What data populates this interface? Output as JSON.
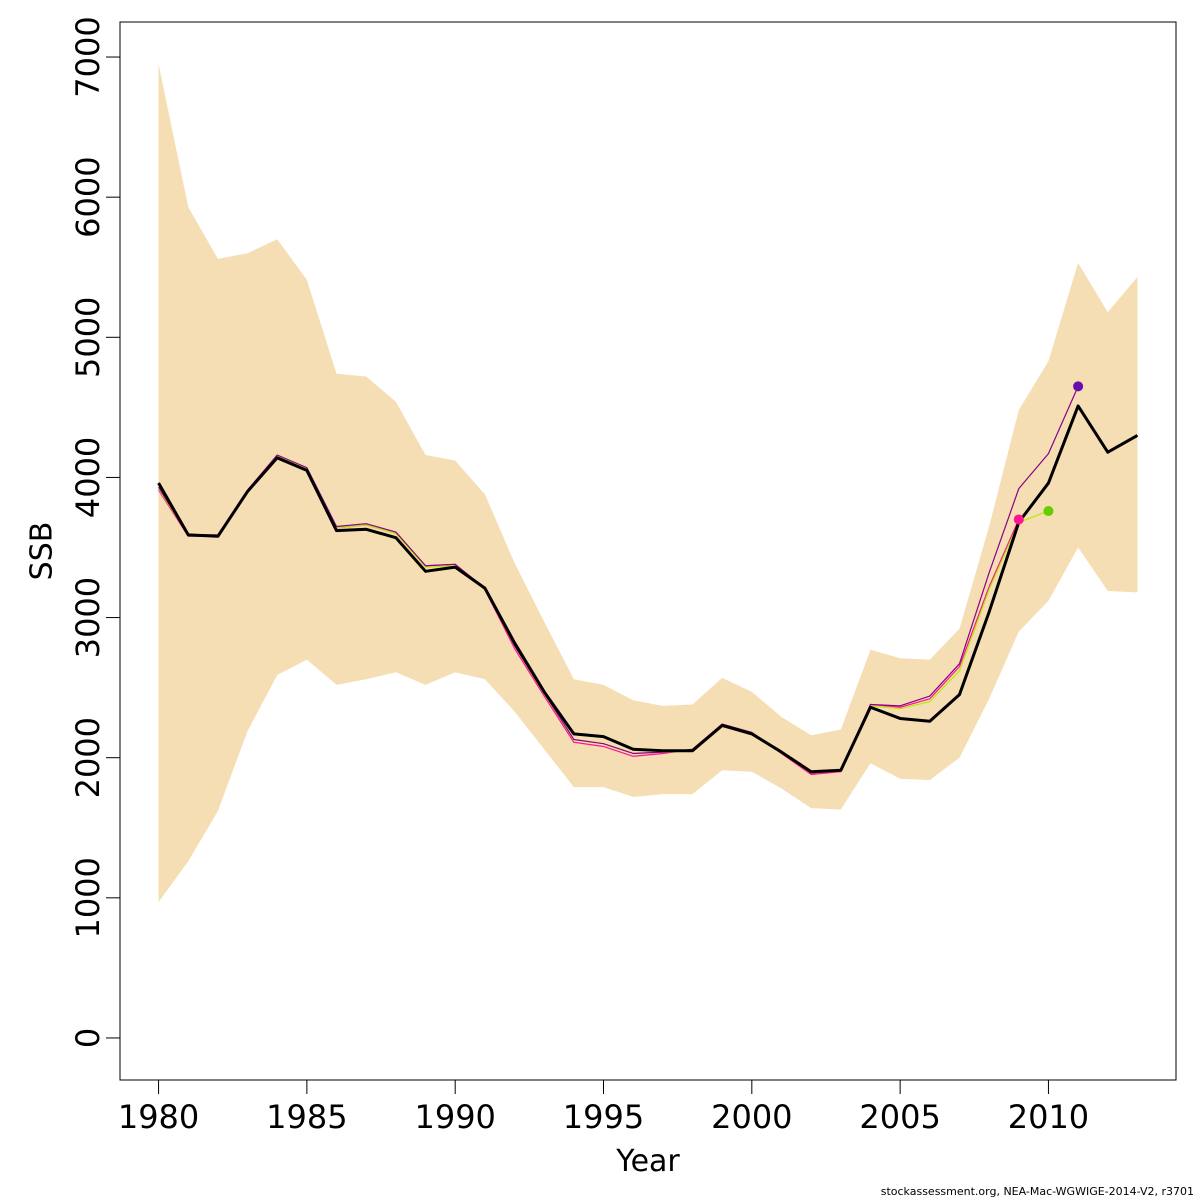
{
  "chart_data": {
    "type": "line",
    "xlabel": "Year",
    "ylabel": "SSB",
    "xlim": [
      1978.7,
      2014.3
    ],
    "ylim": [
      -300,
      7250
    ],
    "x_ticks": [
      1980,
      1985,
      1990,
      1995,
      2000,
      2005,
      2010
    ],
    "y_ticks": [
      0,
      1000,
      2000,
      3000,
      4000,
      5000,
      6000,
      7000
    ],
    "x_tick_labels": [
      "1980",
      "1985",
      "1990",
      "1995",
      "2000",
      "2005",
      "2010"
    ],
    "y_tick_labels": [
      "0",
      "1000",
      "2000",
      "3000",
      "4000",
      "5000",
      "6000",
      "7000"
    ],
    "colors": {
      "band": "#f5deb3",
      "main": "#000000",
      "retro_2012": "#8b008b",
      "retro_2011": "#b2ee00",
      "retro_2010": "#ff1493",
      "end_2012": "#6a0dad",
      "end_2011": "#66cd00",
      "end_2010": "#ff1493"
    },
    "confidence_band": {
      "x": [
        1980,
        1981,
        1982,
        1983,
        1984,
        1985,
        1986,
        1987,
        1988,
        1989,
        1990,
        1991,
        1992,
        1993,
        1994,
        1995,
        1996,
        1997,
        1998,
        1999,
        2000,
        2001,
        2002,
        2003,
        2004,
        2005,
        2006,
        2007,
        2008,
        2009,
        2010,
        2011,
        2012,
        2013
      ],
      "lower": [
        970,
        1260,
        1620,
        2190,
        2590,
        2700,
        2520,
        2560,
        2610,
        2520,
        2610,
        2560,
        2330,
        2060,
        1790,
        1790,
        1720,
        1740,
        1740,
        1910,
        1900,
        1780,
        1640,
        1630,
        1960,
        1850,
        1840,
        2000,
        2420,
        2900,
        3120,
        3500,
        3190,
        3180
      ],
      "upper": [
        6950,
        5930,
        5560,
        5600,
        5700,
        5410,
        4740,
        4720,
        4540,
        4160,
        4120,
        3880,
        3390,
        2970,
        2560,
        2520,
        2410,
        2370,
        2380,
        2570,
        2470,
        2290,
        2160,
        2200,
        2770,
        2710,
        2700,
        2920,
        3650,
        4480,
        4830,
        5530,
        5180,
        5430
      ]
    },
    "series": [
      {
        "key": "main",
        "x": [
          1980,
          1981,
          1982,
          1983,
          1984,
          1985,
          1986,
          1987,
          1988,
          1989,
          1990,
          1991,
          1992,
          1993,
          1994,
          1995,
          1996,
          1997,
          1998,
          1999,
          2000,
          2001,
          2002,
          2003,
          2004,
          2005,
          2006,
          2007,
          2008,
          2009,
          2010,
          2011,
          2012,
          2013
        ],
        "values": [
          3960,
          3590,
          3580,
          3900,
          4140,
          4050,
          3620,
          3630,
          3570,
          3330,
          3360,
          3210,
          2820,
          2470,
          2170,
          2150,
          2060,
          2050,
          2050,
          2230,
          2170,
          2040,
          1900,
          1910,
          2360,
          2280,
          2260,
          2450,
          3040,
          3680,
          3960,
          4510,
          4180,
          4300
        ]
      },
      {
        "key": "retro_2012",
        "x": [
          1980,
          1981,
          1982,
          1983,
          1984,
          1985,
          1986,
          1987,
          1988,
          1989,
          1990,
          1991,
          1992,
          1993,
          1994,
          1995,
          1996,
          1997,
          1998,
          1999,
          2000,
          2001,
          2002,
          2003,
          2004,
          2005,
          2006,
          2007,
          2008,
          2009,
          2010,
          2011
        ],
        "values": [
          3930,
          3590,
          3590,
          3910,
          4160,
          4070,
          3650,
          3670,
          3610,
          3370,
          3380,
          3210,
          2800,
          2460,
          2130,
          2100,
          2030,
          2040,
          2060,
          2240,
          2180,
          2040,
          1890,
          1910,
          2380,
          2370,
          2440,
          2670,
          3320,
          3920,
          4170,
          4650
        ]
      },
      {
        "key": "retro_2011",
        "x": [
          1980,
          1981,
          1982,
          1983,
          1984,
          1985,
          1986,
          1987,
          1988,
          1989,
          1990,
          1991,
          1992,
          1993,
          1994,
          1995,
          1996,
          1997,
          1998,
          1999,
          2000,
          2001,
          2002,
          2003,
          2004,
          2005,
          2006,
          2007,
          2008,
          2009,
          2010
        ],
        "values": [
          3920,
          3590,
          3590,
          3900,
          4150,
          4060,
          3640,
          3660,
          3600,
          3360,
          3370,
          3210,
          2800,
          2460,
          2130,
          2100,
          2030,
          2040,
          2050,
          2240,
          2180,
          2040,
          1890,
          1910,
          2370,
          2350,
          2400,
          2620,
          3200,
          3680,
          3760
        ]
      },
      {
        "key": "retro_2010",
        "x": [
          1980,
          1981,
          1982,
          1983,
          1984,
          1985,
          1986,
          1987,
          1988,
          1989,
          1990,
          1991,
          1992,
          1993,
          1994,
          1995,
          1996,
          1997,
          1998,
          1999,
          2000,
          2001,
          2002,
          2003,
          2004,
          2005,
          2006,
          2007,
          2008,
          2009
        ],
        "values": [
          3910,
          3580,
          3580,
          3890,
          4150,
          4060,
          3640,
          3660,
          3600,
          3370,
          3380,
          3200,
          2780,
          2440,
          2110,
          2080,
          2010,
          2030,
          2060,
          2240,
          2180,
          2030,
          1880,
          1900,
          2380,
          2360,
          2420,
          2650,
          3220,
          3700
        ]
      }
    ],
    "end_points": [
      {
        "key": "end_2012",
        "x": 2011,
        "y": 4650
      },
      {
        "key": "end_2011",
        "x": 2010,
        "y": 3760
      },
      {
        "key": "end_2010",
        "x": 2009,
        "y": 3700
      }
    ]
  },
  "footnote": "stockassessment.org, NEA-Mac-WGWIGE-2014-V2, r3701"
}
